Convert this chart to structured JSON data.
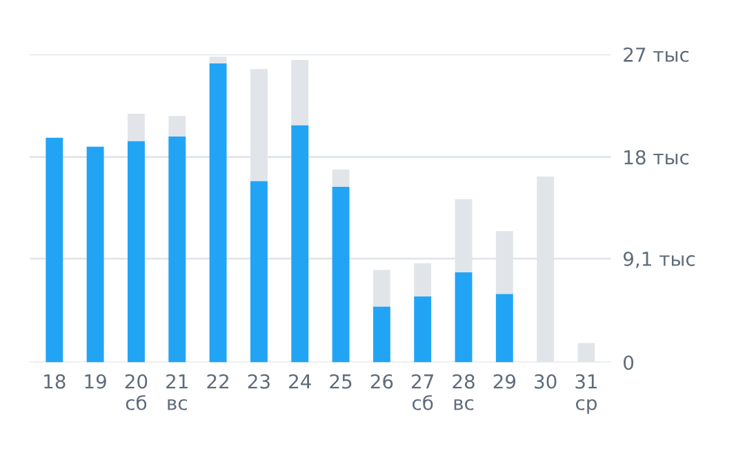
{
  "chart_data": {
    "type": "bar",
    "stacked": true,
    "categories": [
      "18",
      "19",
      "20\nсб",
      "21\nвс",
      "22",
      "23",
      "24",
      "25",
      "26",
      "27\nсб",
      "28\nвс",
      "29",
      "30",
      "31\nср"
    ],
    "series": [
      {
        "color": "#22a4f5",
        "values": [
          19.7,
          18.9,
          19.4,
          19.8,
          26.2,
          15.9,
          20.8,
          15.4,
          4.9,
          5.8,
          7.9,
          6.0,
          0,
          0
        ]
      },
      {
        "color": "#e1e5e9",
        "values": [
          0,
          0,
          2.4,
          1.8,
          0.6,
          9.8,
          5.7,
          1.5,
          3.2,
          2.9,
          6.4,
          5.5,
          16.3,
          1.7
        ]
      }
    ],
    "ylim": [
      0,
      27
    ],
    "yticks": [
      {
        "value": 0,
        "label": "0"
      },
      {
        "value": 9.1,
        "label": "9,1 тыс"
      },
      {
        "value": 18,
        "label": "18 тыс"
      },
      {
        "value": 27,
        "label": "27 тыс"
      }
    ],
    "grid": "y"
  }
}
